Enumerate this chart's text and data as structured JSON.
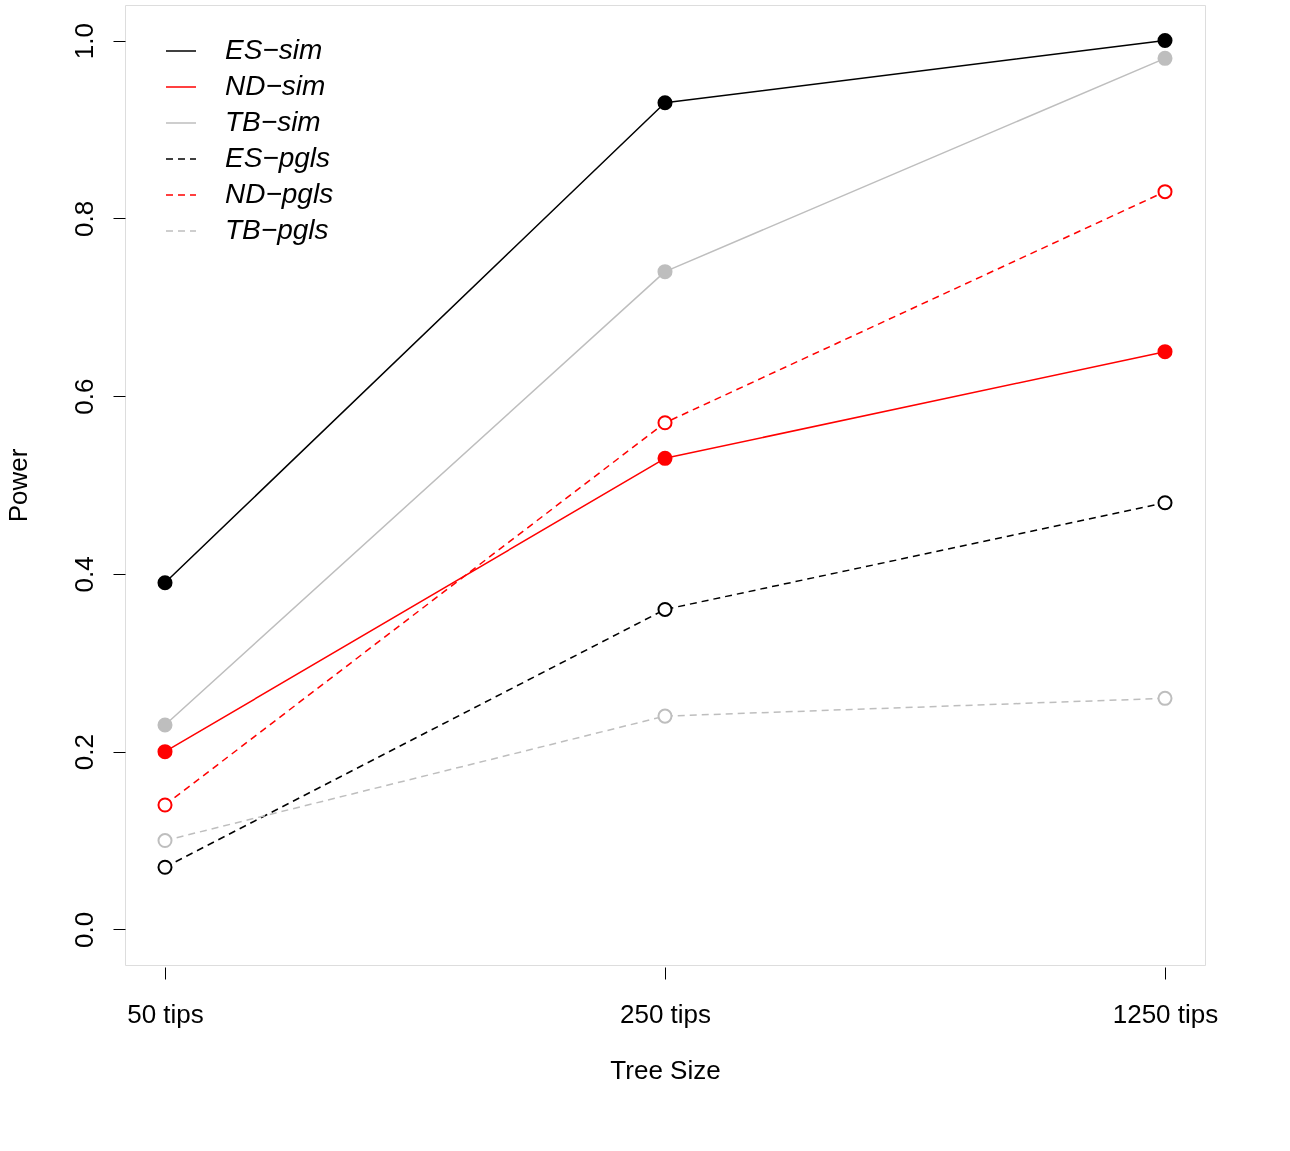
{
  "chart_data": {
    "type": "line",
    "xlabel": "Tree Size",
    "ylabel": "Power",
    "categories": [
      "50 tips",
      "250 tips",
      "1250 tips"
    ],
    "series": [
      {
        "name": "ES−sim",
        "color": "#000000",
        "line_style": "solid",
        "values": [
          0.39,
          0.93,
          1.0
        ]
      },
      {
        "name": "ND−sim",
        "color": "#ff0000",
        "line_style": "solid",
        "values": [
          0.2,
          0.53,
          0.65
        ]
      },
      {
        "name": "TB−sim",
        "color": "#bebebe",
        "line_style": "solid",
        "values": [
          0.23,
          0.74,
          0.98
        ]
      },
      {
        "name": "ES−pgls",
        "color": "#000000",
        "line_style": "dashed",
        "values": [
          0.07,
          0.36,
          0.48
        ]
      },
      {
        "name": "ND−pgls",
        "color": "#ff0000",
        "line_style": "dashed",
        "values": [
          0.14,
          0.57,
          0.83
        ]
      },
      {
        "name": "TB−pgls",
        "color": "#bebebe",
        "line_style": "dashed",
        "values": [
          0.1,
          0.24,
          0.26
        ]
      }
    ],
    "ylim": [
      -0.04,
      1.04
    ],
    "yticks": [
      {
        "value": 0,
        "label": "0.0"
      },
      0.2,
      0.4,
      0.6,
      0.8,
      {
        "value": 1,
        "label": "1.0"
      }
    ],
    "marker": "circle",
    "legend": "top left",
    "grid": false
  }
}
